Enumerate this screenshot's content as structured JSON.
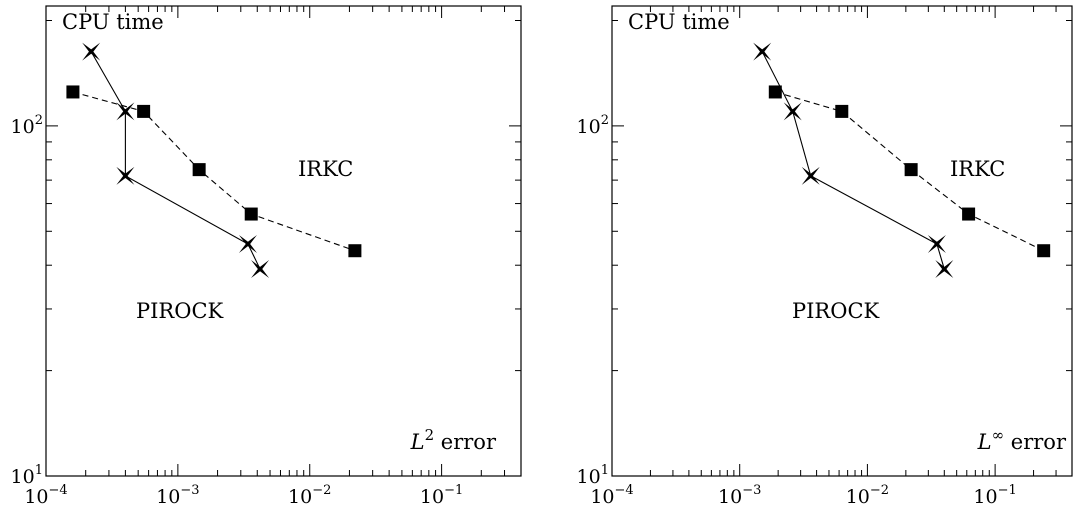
{
  "chart_data": [
    {
      "type": "line",
      "title": "",
      "ylabel": "CPU time",
      "xlabel_base": "L",
      "xlabel_sup": "2",
      "xlabel_rest": " error",
      "xscale": "log",
      "yscale": "log",
      "xlim": [
        0.0001,
        0.4
      ],
      "ylim": [
        10,
        220
      ],
      "xticks": [
        {
          "base": "10",
          "exp": "−4"
        },
        {
          "base": "10",
          "exp": "−3"
        },
        {
          "base": "10",
          "exp": "−2"
        },
        {
          "base": "10",
          "exp": "−1"
        }
      ],
      "yticks": [
        {
          "base": "10",
          "exp": "1"
        },
        {
          "base": "10",
          "exp": "2"
        }
      ],
      "series": [
        {
          "name": "IRKC",
          "marker": "square",
          "line": "dashed",
          "x": [
            0.00016,
            0.00055,
            0.00145,
            0.0036,
            0.022
          ],
          "y": [
            125,
            110,
            75,
            56,
            44
          ]
        },
        {
          "name": "PIROCK",
          "marker": "star",
          "line": "solid",
          "x": [
            0.00022,
            0.0004,
            0.0004,
            0.0034,
            0.0042
          ],
          "y": [
            163,
            110,
            72,
            46,
            39
          ]
        }
      ]
    },
    {
      "type": "line",
      "title": "",
      "ylabel": "CPU time",
      "xlabel_base": "L",
      "xlabel_sup": "∞",
      "xlabel_rest": " error",
      "xscale": "log",
      "yscale": "log",
      "xlim": [
        0.0001,
        0.4
      ],
      "ylim": [
        10,
        220
      ],
      "xticks": [
        {
          "base": "10",
          "exp": "−4"
        },
        {
          "base": "10",
          "exp": "−3"
        },
        {
          "base": "10",
          "exp": "−2"
        },
        {
          "base": "10",
          "exp": "−1"
        }
      ],
      "yticks": [
        {
          "base": "10",
          "exp": "1"
        },
        {
          "base": "10",
          "exp": "2"
        }
      ],
      "series": [
        {
          "name": "IRKC",
          "marker": "square",
          "line": "dashed",
          "x": [
            0.0019,
            0.0063,
            0.022,
            0.062,
            0.24
          ],
          "y": [
            125,
            110,
            75,
            56,
            44
          ]
        },
        {
          "name": "PIROCK",
          "marker": "star",
          "line": "solid",
          "x": [
            0.0015,
            0.0026,
            0.0036,
            0.035,
            0.04
          ],
          "y": [
            163,
            110,
            72,
            46,
            39
          ]
        }
      ]
    }
  ]
}
